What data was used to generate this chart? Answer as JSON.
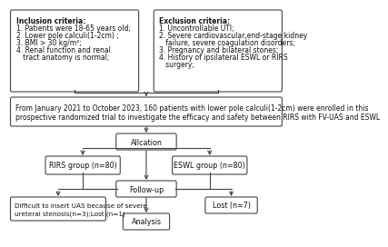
{
  "inclusion_title": "Inclusion criteria:",
  "inclusion_items": [
    "1. Patients were 18-65 years old;",
    "2. Lower pole calculi(1-2cm) ;",
    "3. BMI > 30 kg/m²;",
    "4. Renal function and renal",
    "   tract anatomy is normal;"
  ],
  "exclusion_title": "Exclusion criteria:",
  "exclusion_items": [
    "1. Uncontrollable UTI;",
    "2. Severe cardiovascular,end-stage kidney",
    "   failure, severe coagulation disorders;",
    "3. Pregnancy and bilateral stones;",
    "4. History of ipsilateral ESWL or RIRS",
    "   surgery;"
  ],
  "enrollment_text": "From January 2021 to October 2023, 160 patients with lower pole calculi(1-2cm) were enrolled in this\nprospective randomized trial to investigate the efficacy and safety between RIRS with FV-UAS and ESWL",
  "allocation_text": "Allcation",
  "rirs_text": "RIRS group (n=80)",
  "eswl_text": "ESWL group (n=80)",
  "followup_text": "Follow-up",
  "lost_rirs_text": "Difficult to insert UAS because of severe\nureteral stenosis(n=3);Lost (n=1)",
  "lost_eswl_text": "Lost (n=7)",
  "analysis_text": "Analysis",
  "bg_color": "#ffffff",
  "border_color": "#444444"
}
